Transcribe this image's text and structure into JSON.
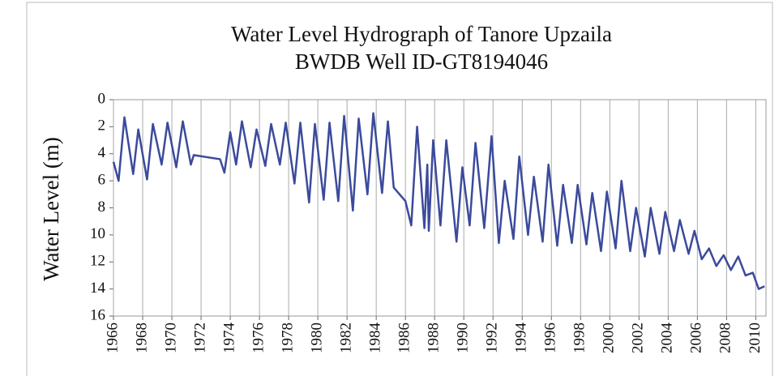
{
  "chart_data": {
    "type": "line",
    "title": [
      "Water Level Hydrograph of Tanore Upzaila",
      "BWDB Well ID-GT8194046"
    ],
    "y_label": "Water Level (m)",
    "y_inverted": true,
    "grid": true,
    "xlim": [
      1966,
      2010.7
    ],
    "xticks": [
      1966,
      1968,
      1970,
      1972,
      1974,
      1976,
      1978,
      1980,
      1982,
      1984,
      1986,
      1988,
      1990,
      1992,
      1994,
      1996,
      1998,
      2000,
      2002,
      2004,
      2006,
      2008,
      2010
    ],
    "ylim": [
      0,
      16
    ],
    "yticks": [
      0,
      2,
      4,
      6,
      8,
      10,
      12,
      14,
      16
    ],
    "series": [
      {
        "color": "#3b4a9c",
        "x": [
          1966.0,
          1966.35,
          1966.75,
          1967.35,
          1967.7,
          1968.3,
          1968.7,
          1969.3,
          1969.7,
          1970.3,
          1970.75,
          1971.3,
          1971.5,
          1973.3,
          1973.6,
          1974.0,
          1974.4,
          1974.8,
          1975.4,
          1975.8,
          1976.4,
          1976.8,
          1977.4,
          1977.8,
          1978.4,
          1978.8,
          1979.4,
          1979.8,
          1980.4,
          1980.8,
          1981.4,
          1981.8,
          1982.4,
          1982.8,
          1983.4,
          1983.8,
          1984.4,
          1984.8,
          1985.2,
          1986.0,
          1986.4,
          1986.8,
          1987.3,
          1987.5,
          1987.6,
          1987.9,
          1988.4,
          1988.8,
          1989.5,
          1989.9,
          1990.4,
          1990.8,
          1991.4,
          1991.9,
          1992.4,
          1992.8,
          1993.4,
          1993.8,
          1994.4,
          1994.8,
          1995.4,
          1995.8,
          1996.4,
          1996.8,
          1997.4,
          1997.8,
          1998.4,
          1998.8,
          1999.4,
          1999.8,
          2000.4,
          2000.8,
          2001.4,
          2001.8,
          2002.4,
          2002.8,
          2003.4,
          2003.8,
          2004.4,
          2004.8,
          2005.4,
          2005.8,
          2006.3,
          2006.8,
          2007.3,
          2007.8,
          2008.3,
          2008.8,
          2009.3,
          2009.8,
          2010.2,
          2010.6
        ],
        "values": [
          4.6,
          6.0,
          1.3,
          5.5,
          2.2,
          5.9,
          1.8,
          4.8,
          1.7,
          5.0,
          1.6,
          4.8,
          4.1,
          4.4,
          5.4,
          2.4,
          4.8,
          1.6,
          5.0,
          2.2,
          4.9,
          1.8,
          4.8,
          1.7,
          6.2,
          1.7,
          7.6,
          1.8,
          7.4,
          1.7,
          7.5,
          1.2,
          8.2,
          1.4,
          7.0,
          1.0,
          6.9,
          1.6,
          6.5,
          7.5,
          9.3,
          2.0,
          9.5,
          4.8,
          9.7,
          3.0,
          9.3,
          3.0,
          10.5,
          5.0,
          9.3,
          3.2,
          9.5,
          2.7,
          10.6,
          6.0,
          10.3,
          4.2,
          10.0,
          5.7,
          10.5,
          4.8,
          10.8,
          6.3,
          10.6,
          6.3,
          10.7,
          6.9,
          11.2,
          6.8,
          11.0,
          6.0,
          11.2,
          8.0,
          11.6,
          8.0,
          11.4,
          8.3,
          11.2,
          8.9,
          11.4,
          9.7,
          11.8,
          11.0,
          12.3,
          11.5,
          12.6,
          11.6,
          13.0,
          12.8,
          14.0,
          13.8
        ]
      }
    ]
  }
}
